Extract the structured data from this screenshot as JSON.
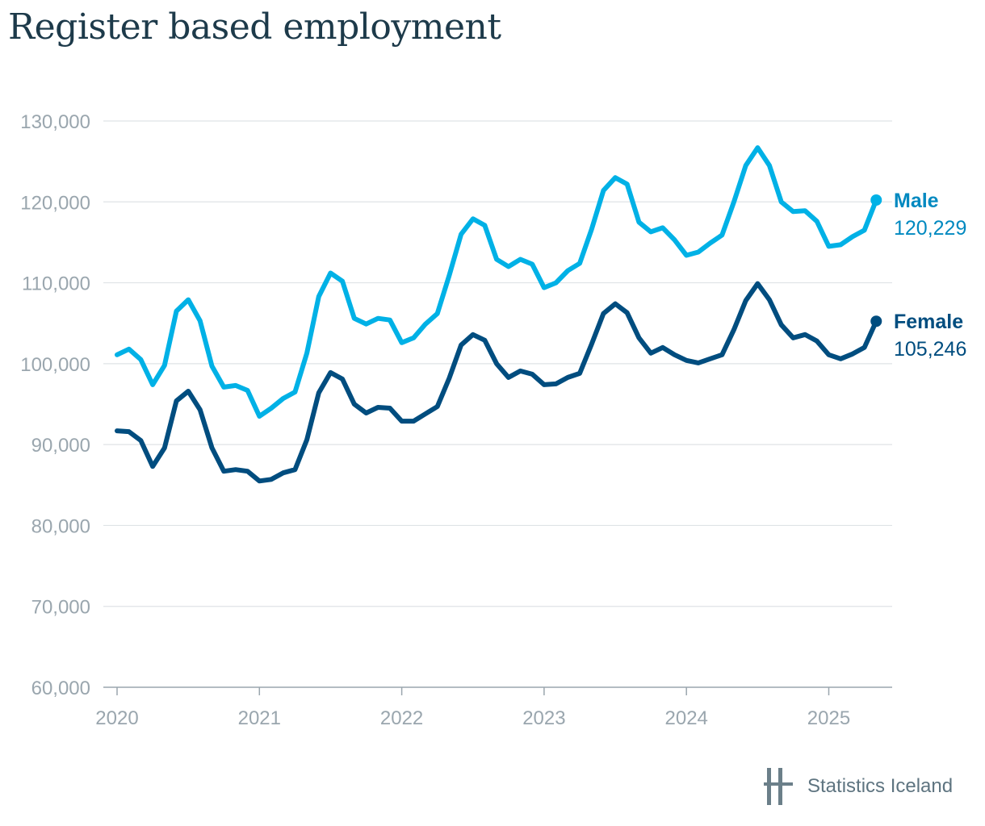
{
  "title": "Register based employment",
  "brand": {
    "name": "Statistics Iceland",
    "icon": "statistics-iceland-logo-icon",
    "color": "#6b7f89"
  },
  "colors": {
    "male": "#00b1e6",
    "female": "#004d7f",
    "male_label": "#0089c0",
    "grid": "#dfe3e6",
    "axis": "#9aa6ae"
  },
  "chart_data": {
    "type": "line",
    "title": "Register based employment",
    "xlabel": "",
    "ylabel": "",
    "x_unit": "monthly, Jan 2020 – May 2025",
    "xlim": [
      "2020-01",
      "2025-06"
    ],
    "ylim": [
      60000,
      130000
    ],
    "yticks": [
      "60,000",
      "70,000",
      "80,000",
      "90,000",
      "100,000",
      "110,000",
      "120,000",
      "130,000"
    ],
    "xticks": [
      "2020",
      "2021",
      "2022",
      "2023",
      "2024",
      "2025"
    ],
    "grid": true,
    "start": "2020-01",
    "series": [
      {
        "name": "Male",
        "end_label": "120,229",
        "values": [
          101100,
          101800,
          100500,
          97400,
          99800,
          106500,
          107900,
          105300,
          99700,
          97100,
          97300,
          96700,
          93500,
          94500,
          95700,
          96500,
          101300,
          108300,
          111200,
          110200,
          105600,
          104900,
          105600,
          105400,
          102600,
          103200,
          104900,
          106200,
          110900,
          116000,
          117900,
          117100,
          112900,
          112000,
          112900,
          112300,
          109400,
          110000,
          111500,
          112400,
          116600,
          121400,
          123000,
          122200,
          117500,
          116300,
          116800,
          115300,
          113400,
          113800,
          114900,
          115900,
          120000,
          124500,
          126700,
          124500,
          120000,
          118800,
          118900,
          117600,
          114500,
          114700,
          115700,
          116500,
          120229
        ]
      },
      {
        "name": "Female",
        "end_label": "105,246",
        "values": [
          91700,
          91600,
          90500,
          87300,
          89600,
          95400,
          96600,
          94300,
          89600,
          86700,
          86900,
          86700,
          85500,
          85700,
          86500,
          86900,
          90600,
          96400,
          98900,
          98100,
          95000,
          93900,
          94600,
          94500,
          92900,
          92900,
          93800,
          94700,
          98200,
          102300,
          103600,
          102900,
          100000,
          98300,
          99100,
          98700,
          97400,
          97500,
          98300,
          98800,
          102400,
          106200,
          107400,
          106300,
          103200,
          101300,
          102000,
          101100,
          100400,
          100100,
          100600,
          101100,
          104200,
          107800,
          109900,
          107900,
          104800,
          103200,
          103600,
          102800,
          101100,
          100600,
          101200,
          102000,
          105246
        ]
      }
    ]
  }
}
